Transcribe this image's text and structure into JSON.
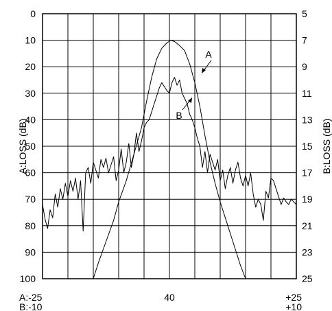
{
  "chart_data": {
    "type": "line",
    "grid": true,
    "y_left": {
      "label": "A:LOSS (dB)",
      "ticks": [
        "0",
        "10",
        "20",
        "30",
        "40",
        "50",
        "60",
        "70",
        "80",
        "90",
        "100"
      ],
      "lim": [
        0,
        100
      ],
      "inverted": true
    },
    "y_right": {
      "label": "B:LOSS (dB)",
      "ticks": [
        "5",
        "7",
        "9",
        "11",
        "13",
        "15",
        "17",
        "19",
        "21",
        "23",
        "25"
      ],
      "lim": [
        5,
        25
      ],
      "inverted": true
    },
    "x_axis": {
      "lim": [
        0,
        10
      ],
      "divisions": 10,
      "labels": {
        "left": [
          "A:-25",
          "B:-10"
        ],
        "center": [
          "40"
        ],
        "right": [
          "+25",
          "+10"
        ]
      }
    },
    "annotations": [
      {
        "text": "A",
        "series": "A"
      },
      {
        "text": "B",
        "series": "B"
      }
    ],
    "series": [
      {
        "name": "A",
        "axis": "left",
        "x": [
          2.0,
          2.2,
          2.5,
          2.8,
          3.0,
          3.3,
          3.6,
          3.9,
          4.1,
          4.3,
          4.5,
          4.7,
          4.9,
          5.05,
          5.2,
          5.4,
          5.6,
          5.8,
          6.0,
          6.2,
          6.4,
          6.6,
          6.8,
          7.0,
          7.2,
          7.4,
          7.6,
          7.8,
          8.0
        ],
        "values": [
          100,
          94,
          86,
          78,
          71,
          63,
          53,
          43,
          33,
          24,
          17,
          13,
          11,
          10,
          10.5,
          12,
          14,
          19,
          26,
          35,
          46,
          56,
          64,
          71,
          77,
          83,
          89,
          95,
          100
        ]
      },
      {
        "name": "B",
        "axis": "right",
        "x": [
          0,
          0.1,
          0.2,
          0.3,
          0.4,
          0.5,
          0.6,
          0.7,
          0.8,
          0.9,
          1.0,
          1.1,
          1.2,
          1.3,
          1.4,
          1.5,
          1.6,
          1.7,
          1.8,
          1.9,
          2.0,
          2.1,
          2.2,
          2.3,
          2.4,
          2.5,
          2.6,
          2.7,
          2.8,
          2.9,
          3.0,
          3.1,
          3.2,
          3.3,
          3.4,
          3.5,
          3.6,
          3.7,
          3.8,
          3.9,
          4.0,
          4.1,
          4.2,
          4.3,
          4.4,
          4.5,
          4.6,
          4.7,
          4.8,
          4.9,
          5.0,
          5.1,
          5.2,
          5.3,
          5.4,
          5.5,
          5.6,
          5.7,
          5.8,
          5.9,
          6.0,
          6.1,
          6.2,
          6.3,
          6.4,
          6.5,
          6.6,
          6.7,
          6.8,
          6.9,
          7.0,
          7.1,
          7.2,
          7.3,
          7.4,
          7.5,
          7.6,
          7.7,
          7.8,
          7.9,
          8.0,
          8.1,
          8.2,
          8.3,
          8.4,
          8.5,
          8.6,
          8.7,
          8.8,
          8.9,
          9.0,
          9.1,
          9.2,
          9.3,
          9.4,
          9.5,
          9.6,
          9.7,
          9.8,
          9.9,
          10.0
        ],
        "values": [
          19.4,
          20.5,
          21.2,
          19.8,
          20.4,
          18.6,
          19.6,
          18.2,
          19.0,
          17.8,
          18.8,
          17.6,
          18.4,
          17.4,
          19.0,
          17.6,
          21.4,
          17.0,
          16.6,
          17.8,
          16.2,
          16.8,
          17.4,
          16.0,
          16.6,
          15.9,
          17.0,
          16.4,
          15.8,
          17.6,
          16.8,
          15.2,
          17.0,
          16.2,
          14.8,
          16.6,
          15.6,
          14.0,
          15.4,
          14.6,
          13.6,
          13.2,
          13.0,
          12.4,
          11.8,
          11.2,
          10.6,
          10.2,
          10.5,
          10.8,
          11.0,
          10.2,
          9.8,
          10.4,
          10.0,
          11.0,
          11.4,
          11.8,
          12.6,
          13.0,
          13.6,
          14.4,
          15.0,
          16.6,
          15.4,
          17.0,
          15.6,
          16.2,
          16.8,
          16.0,
          17.6,
          16.8,
          18.2,
          17.2,
          16.6,
          17.8,
          16.8,
          16.2,
          17.4,
          18.0,
          17.2,
          18.0,
          17.0,
          18.6,
          19.6,
          19.0,
          19.4,
          20.6,
          18.4,
          18.9,
          17.4,
          17.6,
          18.2,
          18.8,
          19.4,
          18.9,
          19.2,
          19.4,
          19.0,
          19.2,
          19.4
        ]
      }
    ]
  }
}
